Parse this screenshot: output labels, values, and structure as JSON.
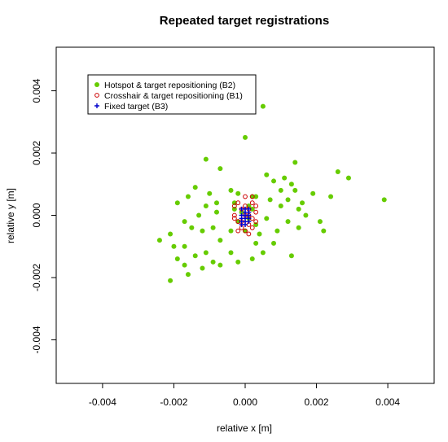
{
  "chart_data": {
    "type": "scatter",
    "title": "Repeated target registrations",
    "xlabel": "relative x [m]",
    "ylabel": "relative y [m]",
    "xlim": [
      -0.0053,
      0.0053
    ],
    "ylim": [
      -0.0054,
      0.0054
    ],
    "xticks": [
      -0.004,
      -0.002,
      0.0,
      0.002,
      0.004
    ],
    "xtick_labels": [
      "-0.004",
      "-0.002",
      "0.000",
      "0.002",
      "0.004"
    ],
    "yticks": [
      -0.004,
      -0.002,
      0.0,
      0.002,
      0.004
    ],
    "ytick_labels": [
      "-0.004",
      "-0.002",
      "0.000",
      "0.002",
      "0.004"
    ],
    "grid": false,
    "legend_position": "top-left",
    "series": [
      {
        "name": "Hotspot & target repositioning (B2)",
        "marker": "filled-circle",
        "color": "#66cc00",
        "points": [
          [
            0.0005,
            0.0035
          ],
          [
            0.0,
            0.0025
          ],
          [
            -0.0011,
            0.0018
          ],
          [
            0.0014,
            0.0017
          ],
          [
            0.0026,
            0.0014
          ],
          [
            0.0029,
            0.0012
          ],
          [
            0.0039,
            0.0005
          ],
          [
            -0.0007,
            0.0015
          ],
          [
            0.0006,
            0.0013
          ],
          [
            0.0011,
            0.0012
          ],
          [
            -0.0014,
            0.0009
          ],
          [
            0.0013,
            0.001
          ],
          [
            0.0008,
            0.0011
          ],
          [
            0.0024,
            0.0006
          ],
          [
            -0.0004,
            0.0008
          ],
          [
            0.001,
            0.0008
          ],
          [
            0.0014,
            0.0008
          ],
          [
            -0.001,
            0.0007
          ],
          [
            -0.0008,
            0.0004
          ],
          [
            0.0002,
            0.0006
          ],
          [
            0.0012,
            0.0005
          ],
          [
            0.0016,
            0.0004
          ],
          [
            -0.0016,
            0.0006
          ],
          [
            -0.0002,
            0.0007
          ],
          [
            0.0007,
            0.0005
          ],
          [
            -0.0011,
            0.0003
          ],
          [
            0.0019,
            0.0007
          ],
          [
            0.0003,
            0.0006
          ],
          [
            -0.0003,
            0.0004
          ],
          [
            0.001,
            0.0003
          ],
          [
            0.0015,
            0.0002
          ],
          [
            -0.0019,
            0.0004
          ],
          [
            0.0017,
            0.0
          ],
          [
            -0.0008,
            0.0001
          ],
          [
            0.0021,
            -0.0002
          ],
          [
            -0.0013,
            0.0
          ],
          [
            0.0006,
            -0.0001
          ],
          [
            -0.0017,
            -0.0002
          ],
          [
            0.0012,
            -0.0002
          ],
          [
            -0.0009,
            -0.0004
          ],
          [
            0.0009,
            -0.0005
          ],
          [
            -0.0004,
            -0.0005
          ],
          [
            0.0015,
            -0.0004
          ],
          [
            -0.0015,
            -0.0004
          ],
          [
            0.0004,
            -0.0006
          ],
          [
            -0.0021,
            -0.0006
          ],
          [
            0.0022,
            -0.0005
          ],
          [
            -0.0012,
            -0.0005
          ],
          [
            -0.0024,
            -0.0008
          ],
          [
            -0.0007,
            -0.0008
          ],
          [
            0.0003,
            -0.0009
          ],
          [
            -0.0017,
            -0.001
          ],
          [
            0.0008,
            -0.0009
          ],
          [
            -0.0011,
            -0.0012
          ],
          [
            0.0005,
            -0.0012
          ],
          [
            -0.002,
            -0.001
          ],
          [
            -0.0014,
            -0.0013
          ],
          [
            -0.0004,
            -0.0012
          ],
          [
            0.0013,
            -0.0013
          ],
          [
            -0.0019,
            -0.0014
          ],
          [
            -0.0009,
            -0.0015
          ],
          [
            -0.0002,
            -0.0015
          ],
          [
            -0.0007,
            -0.0016
          ],
          [
            -0.0017,
            -0.0016
          ],
          [
            -0.0012,
            -0.0017
          ],
          [
            -0.0021,
            -0.0021
          ],
          [
            0.0002,
            -0.0014
          ],
          [
            -0.0016,
            -0.0019
          ],
          [
            0.0001,
            -0.0001
          ],
          [
            -0.0001,
            0.0001
          ],
          [
            0.0002,
            0.0002
          ],
          [
            -0.0002,
            -0.0002
          ],
          [
            0.0001,
            0.0003
          ],
          [
            0.0003,
            -0.0003
          ],
          [
            -0.0003,
            0.0002
          ],
          [
            0.0,
            -0.0005
          ]
        ]
      },
      {
        "name": "Crosshair & target repositioning (B1)",
        "marker": "open-circle",
        "color": "#cc0000",
        "points": [
          [
            0.0,
            0.0006
          ],
          [
            -0.0002,
            0.0004
          ],
          [
            0.0002,
            0.0004
          ],
          [
            -0.0001,
            0.0002
          ],
          [
            0.0001,
            0.0002
          ],
          [
            0.0003,
            0.0001
          ],
          [
            -0.0003,
            0.0
          ],
          [
            0.0,
            0.0
          ],
          [
            0.0002,
            -0.0001
          ],
          [
            -0.0002,
            -0.0002
          ],
          [
            0.0001,
            -0.0003
          ],
          [
            -0.0001,
            -0.0004
          ],
          [
            0.0002,
            -0.0004
          ],
          [
            0.0,
            -0.0005
          ],
          [
            -0.0002,
            -0.0005
          ],
          [
            0.0001,
            -0.0006
          ],
          [
            0.0003,
            -0.0002
          ],
          [
            -0.0003,
            -0.0001
          ],
          [
            0.0,
            0.0003
          ],
          [
            0.0002,
            0.0006
          ],
          [
            -0.0001,
            -0.0002
          ],
          [
            0.0003,
            0.0003
          ],
          [
            -0.0003,
            0.0003
          ],
          [
            0.0001,
            0.0
          ]
        ]
      },
      {
        "name": "Fixed target (B3)",
        "marker": "plus",
        "color": "#0000cc",
        "points": [
          [
            0.0,
            0.0002
          ],
          [
            0.0001,
            0.0001
          ],
          [
            -0.0001,
            0.0
          ],
          [
            0.0,
            -0.0001
          ],
          [
            0.0001,
            -0.0002
          ],
          [
            -0.0001,
            -0.0002
          ],
          [
            0.0,
            -0.0003
          ],
          [
            0.0001,
            0.0
          ],
          [
            -0.0001,
            0.0002
          ],
          [
            0.0,
            0.0
          ],
          [
            0.0001,
            -0.0001
          ],
          [
            -0.0001,
            -0.0001
          ],
          [
            0.0,
            -0.0002
          ],
          [
            0.0001,
            0.0002
          ],
          [
            0.0,
            0.0001
          ],
          [
            -0.0001,
            -0.0003
          ]
        ]
      }
    ]
  }
}
